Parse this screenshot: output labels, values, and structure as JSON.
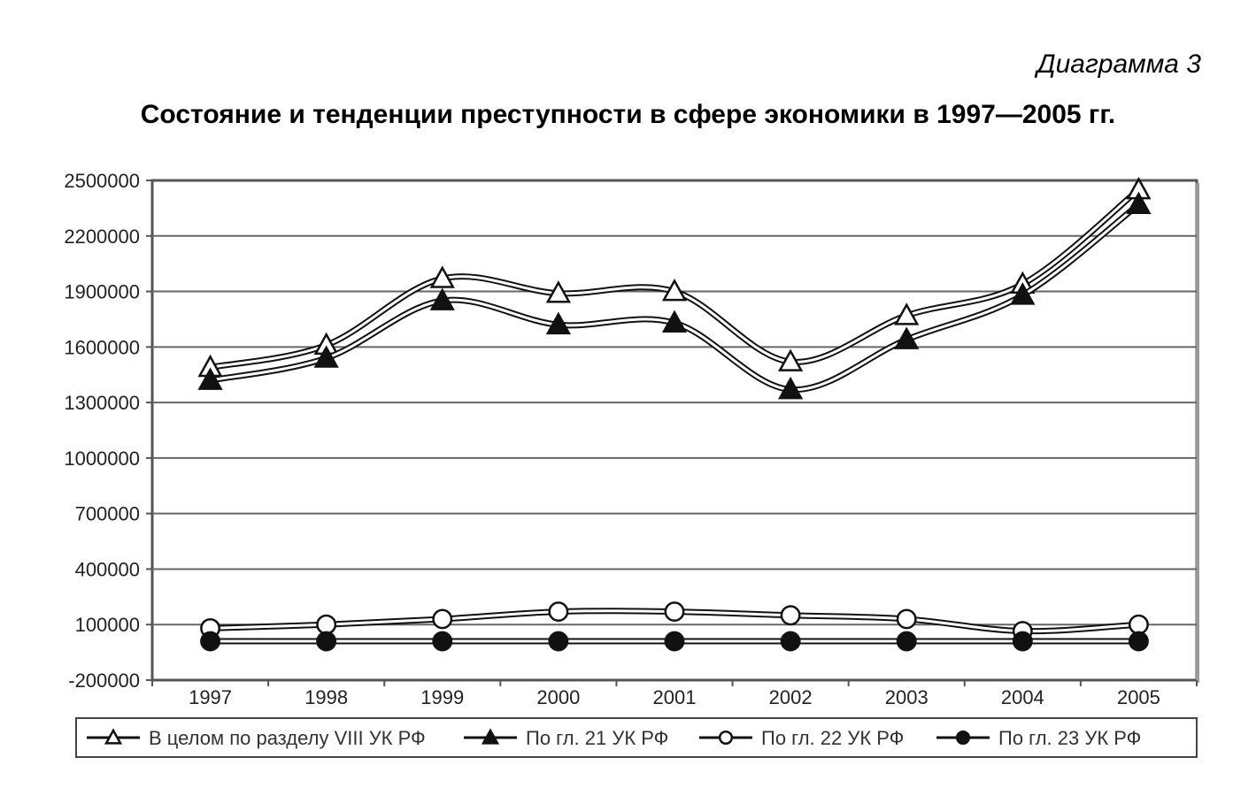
{
  "caption": "Диаграмма 3",
  "chart_data": {
    "type": "line",
    "title": "Состояние и тенденции преступности в сфере экономики в 1997—2005 гг.",
    "xlabel": "",
    "ylabel": "",
    "categories": [
      "1997",
      "1998",
      "1999",
      "2000",
      "2001",
      "2002",
      "2003",
      "2004",
      "2005"
    ],
    "ylim": [
      -200000,
      2500000
    ],
    "yticks": [
      -200000,
      100000,
      400000,
      700000,
      1000000,
      1300000,
      1600000,
      1900000,
      2200000,
      2500000
    ],
    "ytick_labels": [
      "-200000",
      "100000",
      "400000",
      "700000",
      "1000000",
      "1300000",
      "1600000",
      "1900000",
      "2200000",
      "2500000"
    ],
    "grid": true,
    "legend_position": "bottom",
    "series": [
      {
        "name": "В целом по разделу VIII УК РФ",
        "marker": "triangle-open",
        "values": [
          1490000,
          1610000,
          1970000,
          1890000,
          1900000,
          1520000,
          1770000,
          1940000,
          2450000
        ]
      },
      {
        "name": "По гл. 21 УК РФ",
        "marker": "triangle-filled",
        "values": [
          1420000,
          1540000,
          1850000,
          1720000,
          1730000,
          1370000,
          1640000,
          1880000,
          2370000
        ]
      },
      {
        "name": "По гл. 22 УК РФ",
        "marker": "circle-open",
        "values": [
          80000,
          100000,
          130000,
          170000,
          170000,
          150000,
          130000,
          65000,
          100000
        ]
      },
      {
        "name": "По гл. 23 УК РФ",
        "marker": "circle-filled",
        "values": [
          10000,
          10000,
          10000,
          10000,
          10000,
          10000,
          10000,
          10000,
          10000
        ]
      }
    ]
  }
}
